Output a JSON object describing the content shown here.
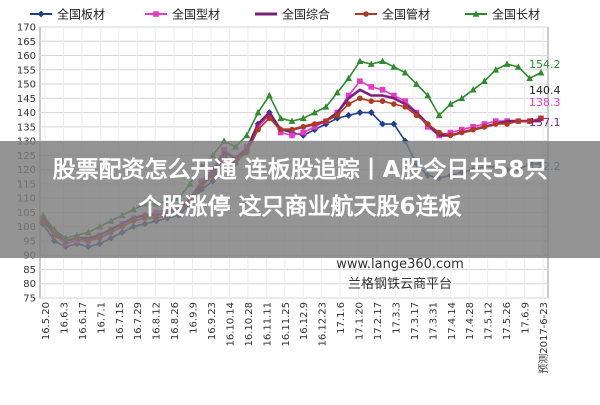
{
  "chart_data": {
    "type": "line",
    "legend_position": "top",
    "grid": true,
    "ylim": [
      75,
      170
    ],
    "y_ticks": [
      75,
      80,
      85,
      90,
      95,
      100,
      105,
      110,
      115,
      120,
      125,
      130,
      135,
      140,
      145,
      150,
      155,
      160,
      165,
      170
    ],
    "x_tick_labels": [
      "16.5.20",
      "16.6.3",
      "16.6.17",
      "16.7.1",
      "16.7.15",
      "16.7.29",
      "16.8.12",
      "16.8.26",
      "16.9.9",
      "16.9.23",
      "16.10.14",
      "16.10.28",
      "16.11.11",
      "16.11.25",
      "16.12.9",
      "16.12.23",
      "17.1.6",
      "17.1.20",
      "17.2.17",
      "17.3.3",
      "17.3.17",
      "17.3.31",
      "17.4.14",
      "17.4.28",
      "17.5.12",
      "17.5.26",
      "17.6.9",
      "预测2017-6-23"
    ],
    "series": [
      {
        "name": "全国板材",
        "color": "#1f3f8a",
        "marker": "diamond",
        "values": [
          101,
          95,
          93,
          94,
          93,
          94,
          96,
          98,
          100,
          101,
          102,
          103,
          104,
          108,
          113,
          116,
          125,
          122,
          127,
          136,
          140,
          134,
          133,
          132,
          134,
          136,
          138,
          139,
          140,
          140,
          136,
          136,
          130,
          122,
          118,
          117,
          118,
          119,
          120,
          121,
          121,
          120,
          120,
          122,
          122
        ]
      },
      {
        "name": "全国型材",
        "color": "#e838c8",
        "marker": "square",
        "values": [
          102,
          97,
          94,
          95,
          95,
          97,
          99,
          101,
          103,
          104,
          105,
          106,
          106,
          110,
          116,
          120,
          127,
          124,
          128,
          135,
          139,
          133,
          132,
          133,
          135,
          137,
          140,
          146,
          151,
          149,
          148,
          146,
          144,
          140,
          135,
          132,
          133,
          134,
          135,
          136,
          137,
          137,
          137,
          137,
          138
        ]
      },
      {
        "name": "全国综合",
        "color": "#7a1f7a",
        "marker": "none",
        "values": [
          103,
          98,
          95,
          96,
          96,
          97,
          99,
          101,
          103,
          104,
          104,
          105,
          106,
          110,
          115,
          119,
          126,
          124,
          127,
          136,
          140,
          134,
          134,
          135,
          136,
          137,
          140,
          145,
          148,
          146,
          146,
          145,
          143,
          140,
          136,
          132,
          132,
          133,
          134,
          135,
          136,
          137,
          137,
          137,
          137
        ]
      },
      {
        "name": "全国管材",
        "color": "#b03a1e",
        "marker": "circle",
        "values": [
          102,
          97,
          95,
          96,
          95,
          96,
          98,
          100,
          102,
          103,
          103,
          104,
          105,
          109,
          114,
          118,
          124,
          123,
          126,
          134,
          138,
          134,
          134,
          135,
          136,
          137,
          139,
          143,
          145,
          144,
          144,
          143,
          142,
          139,
          136,
          133,
          132,
          133,
          134,
          135,
          136,
          136,
          137,
          137,
          138
        ]
      },
      {
        "name": "全国长材",
        "color": "#2e8b2e",
        "marker": "triangle",
        "values": [
          104,
          99,
          96,
          97,
          98,
          100,
          102,
          104,
          106,
          108,
          108,
          109,
          110,
          115,
          121,
          125,
          130,
          128,
          132,
          140,
          146,
          138,
          137,
          138,
          140,
          142,
          147,
          152,
          158,
          157,
          158,
          156,
          154,
          150,
          146,
          139,
          143,
          145,
          148,
          151,
          155,
          157,
          156,
          152,
          154
        ]
      }
    ],
    "end_labels": [
      {
        "text": "154.2",
        "color": "#2e8b2e"
      },
      {
        "text": "140.4",
        "color": "#222222"
      },
      {
        "text": "138.3",
        "color": "#e838c8"
      },
      {
        "text": "137.1",
        "color": "#7a1f7a"
      },
      {
        "text": "122.2",
        "color": "#1f3f8a"
      }
    ]
  },
  "watermark": {
    "site": "www.lange360.com",
    "platform": "兰格钢铁云商平台"
  },
  "banner": {
    "line1": "股票配资怎么开通 连板股追踪丨A股今日共58只",
    "line2": "个股涨停 这只商业航天股6连板"
  }
}
